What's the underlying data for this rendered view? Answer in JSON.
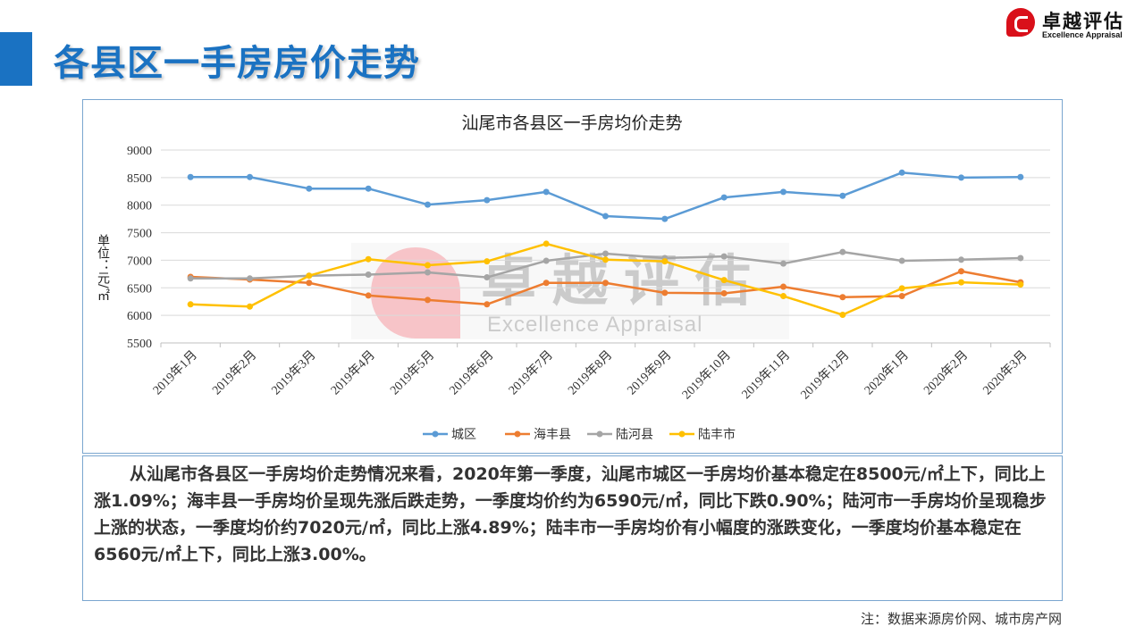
{
  "header": {
    "title": "各县区一手房房价走势",
    "logo_cn": "卓越评估",
    "logo_en": "Excellence Appraisal"
  },
  "watermark": {
    "cn": "卓越评估",
    "en": "Excellence Appraisal"
  },
  "chart_data": {
    "type": "line",
    "title": "汕尾市各县区一手房均价走势",
    "ylabel": "单位：元/㎡",
    "xlabel": "",
    "ylim": [
      5500,
      9000
    ],
    "yticks": [
      5500,
      6000,
      6500,
      7000,
      7500,
      8000,
      8500,
      9000
    ],
    "grid": true,
    "legend_position": "bottom",
    "categories": [
      "2019年1月",
      "2019年2月",
      "2019年3月",
      "2019年4月",
      "2019年5月",
      "2019年6月",
      "2019年7月",
      "2019年8月",
      "2019年9月",
      "2019年10月",
      "2019年11月",
      "2019年12月",
      "2020年1月",
      "2020年2月",
      "2020年3月"
    ],
    "series": [
      {
        "name": "城区",
        "color": "#5b9bd5",
        "values": [
          8510,
          8510,
          8300,
          8300,
          8010,
          8090,
          8240,
          7800,
          7750,
          8140,
          8240,
          8170,
          8590,
          8500,
          8510
        ]
      },
      {
        "name": "海丰县",
        "color": "#ed7d31",
        "values": [
          6700,
          6650,
          6590,
          6360,
          6280,
          6200,
          6590,
          6590,
          6410,
          6400,
          6520,
          6330,
          6350,
          6800,
          6600
        ]
      },
      {
        "name": "陆河县",
        "color": "#a5a5a5",
        "values": [
          6670,
          6670,
          6720,
          6740,
          6780,
          6690,
          6990,
          7120,
          7040,
          7070,
          6940,
          7150,
          6990,
          7010,
          7040
        ]
      },
      {
        "name": "陆丰市",
        "color": "#ffc000",
        "values": [
          6200,
          6160,
          6720,
          7020,
          6910,
          6980,
          7300,
          7010,
          6980,
          6640,
          6350,
          6010,
          6490,
          6600,
          6560
        ]
      }
    ]
  },
  "summary": "从汕尾市各县区一手房均价走势情况来看，2020年第一季度，汕尾市城区一手房均价基本稳定在8500元/㎡上下，同比上涨1.09%；海丰县一手房均价呈现先涨后跌走势，一季度均价约为6590元/㎡，同比下跌0.90%；陆河市一手房均价呈现稳步上涨的状态，一季度均价约7020元/㎡，同比上涨4.89%；陆丰市一手房均价有小幅度的涨跌变化，一季度均价基本稳定在6560元/㎡上下，同比上涨3.00%。",
  "footnote": "注：数据来源房价网、城市房产网"
}
